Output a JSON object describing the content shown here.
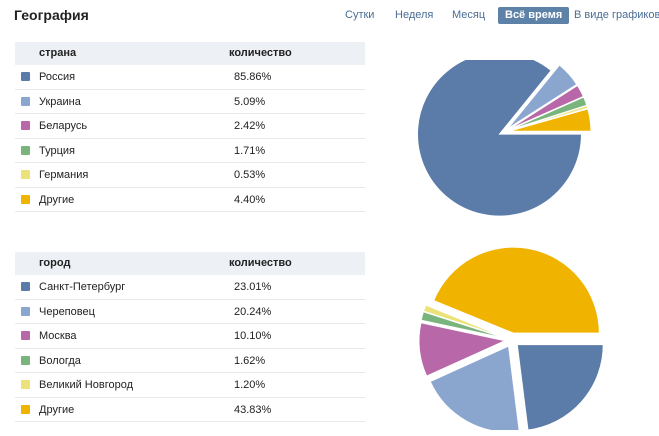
{
  "header": {
    "title": "География"
  },
  "periods": [
    {
      "label": "Сутки",
      "active": false
    },
    {
      "label": "Неделя",
      "active": false
    },
    {
      "label": "Месяц",
      "active": false
    },
    {
      "label": "Всё время",
      "active": true
    },
    {
      "label": "В виде графиков",
      "active": false
    }
  ],
  "colors": {
    "blue": "#5b7ca8",
    "light_blue": "#8aa6cf",
    "magenta": "#b868a8",
    "green": "#79b47c",
    "yellow": "#ece27a",
    "orange": "#f0b400"
  },
  "countries": {
    "col_name": "страна",
    "col_value": "количество",
    "rows": [
      {
        "name": "Россия",
        "value": "85.86%",
        "color": "#5b7ca8"
      },
      {
        "name": "Украина",
        "value": "5.09%",
        "color": "#8aa6cf"
      },
      {
        "name": "Беларусь",
        "value": "2.42%",
        "color": "#b868a8"
      },
      {
        "name": "Турция",
        "value": "1.71%",
        "color": "#79b47c"
      },
      {
        "name": "Германия",
        "value": "0.53%",
        "color": "#ece27a"
      },
      {
        "name": "Другие",
        "value": "4.40%",
        "color": "#f0b400"
      }
    ]
  },
  "cities": {
    "col_name": "город",
    "col_value": "количество",
    "rows": [
      {
        "name": "Санкт-Петербург",
        "value": "23.01%",
        "color": "#5b7ca8"
      },
      {
        "name": "Череповец",
        "value": "20.24%",
        "color": "#8aa6cf"
      },
      {
        "name": "Москва",
        "value": "10.10%",
        "color": "#b868a8"
      },
      {
        "name": "Вологда",
        "value": "1.62%",
        "color": "#79b47c"
      },
      {
        "name": "Великий Новгород",
        "value": "1.20%",
        "color": "#ece27a"
      },
      {
        "name": "Другие",
        "value": "43.83%",
        "color": "#f0b400"
      }
    ]
  },
  "chart_data": [
    {
      "type": "pie",
      "categories": [
        "Россия",
        "Украина",
        "Беларусь",
        "Турция",
        "Германия",
        "Другие"
      ],
      "values": [
        85.86,
        5.09,
        2.42,
        1.71,
        0.53,
        4.4
      ],
      "colors": [
        "#5b7ca8",
        "#8aa6cf",
        "#b868a8",
        "#79b47c",
        "#ece27a",
        "#f0b400"
      ],
      "exploded": [
        true,
        true,
        true,
        true,
        true,
        true
      ]
    },
    {
      "type": "pie",
      "categories": [
        "Санкт-Петербург",
        "Череповец",
        "Москва",
        "Вологда",
        "Великий Новгород",
        "Другие"
      ],
      "values": [
        23.01,
        20.24,
        10.1,
        1.62,
        1.2,
        43.83
      ],
      "colors": [
        "#5b7ca8",
        "#8aa6cf",
        "#b868a8",
        "#79b47c",
        "#ece27a",
        "#f0b400"
      ],
      "exploded": [
        true,
        true,
        true,
        true,
        true,
        true
      ]
    }
  ]
}
